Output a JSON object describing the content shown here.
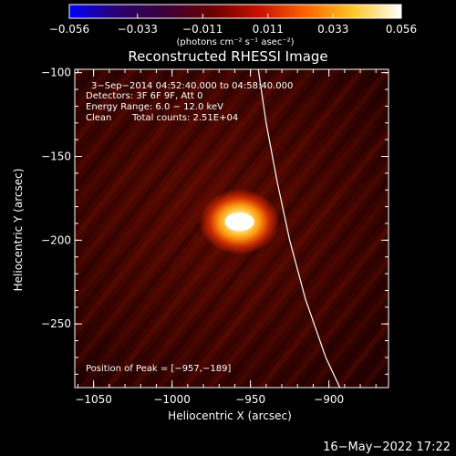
{
  "chart_data": {
    "type": "heatmap",
    "title": "Reconstructed RHESSI Image",
    "xlabel": "Heliocentric X (arcsec)",
    "ylabel": "Heliocentric Y (arcsec)",
    "xlim": [
      -1062,
      -862
    ],
    "ylim": [
      -288,
      -98
    ],
    "x_ticks": [
      {
        "value": -1050,
        "label": "−1050"
      },
      {
        "value": -1000,
        "label": "−1000"
      },
      {
        "value": -950,
        "label": "−950"
      },
      {
        "value": -900,
        "label": "−900"
      }
    ],
    "y_ticks": [
      {
        "value": -100,
        "label": "−100"
      },
      {
        "value": -150,
        "label": "−150"
      },
      {
        "value": -200,
        "label": "−200"
      },
      {
        "value": -250,
        "label": "−250"
      }
    ],
    "colorbar": {
      "range": [
        -0.056,
        0.056
      ],
      "unit_label": "(photons cm⁻² s⁻¹ asec⁻²)",
      "ticks": [
        {
          "value": -0.056,
          "label": "−0.056"
        },
        {
          "value": -0.033,
          "label": "−0.033"
        },
        {
          "value": -0.011,
          "label": "−0.011"
        },
        {
          "value": 0.011,
          "label": "0.011"
        },
        {
          "value": 0.033,
          "label": "0.033"
        },
        {
          "value": 0.056,
          "label": "0.056"
        }
      ],
      "colors": [
        "#0000ff",
        "#2a0070",
        "#3a003a",
        "#6a0000",
        "#c81000",
        "#ff6400",
        "#ffc828",
        "#ffffff"
      ]
    },
    "annotations": {
      "line1": "3−Sep−2014 04:52:40.000 to 04:58:40.000",
      "line2": "Detectors: 3F 6F 9F, Att 0",
      "line3": "Energy Range: 6.0 − 12.0 keV",
      "line4_left": "Clean",
      "line4_right": "Total counts: 2.51E+04",
      "peak": "Position of Peak = [−957,−189]"
    },
    "peak": {
      "x": -957,
      "y": -189,
      "value": 0.056
    },
    "limb_curve": [
      {
        "x": -945,
        "y": -98
      },
      {
        "x": -940,
        "y": -130
      },
      {
        "x": -933,
        "y": -165
      },
      {
        "x": -925,
        "y": -200
      },
      {
        "x": -915,
        "y": -235
      },
      {
        "x": -902,
        "y": -270
      },
      {
        "x": -893,
        "y": -288
      }
    ]
  },
  "footer": {
    "timestamp": "16−May−2022 17:22"
  }
}
